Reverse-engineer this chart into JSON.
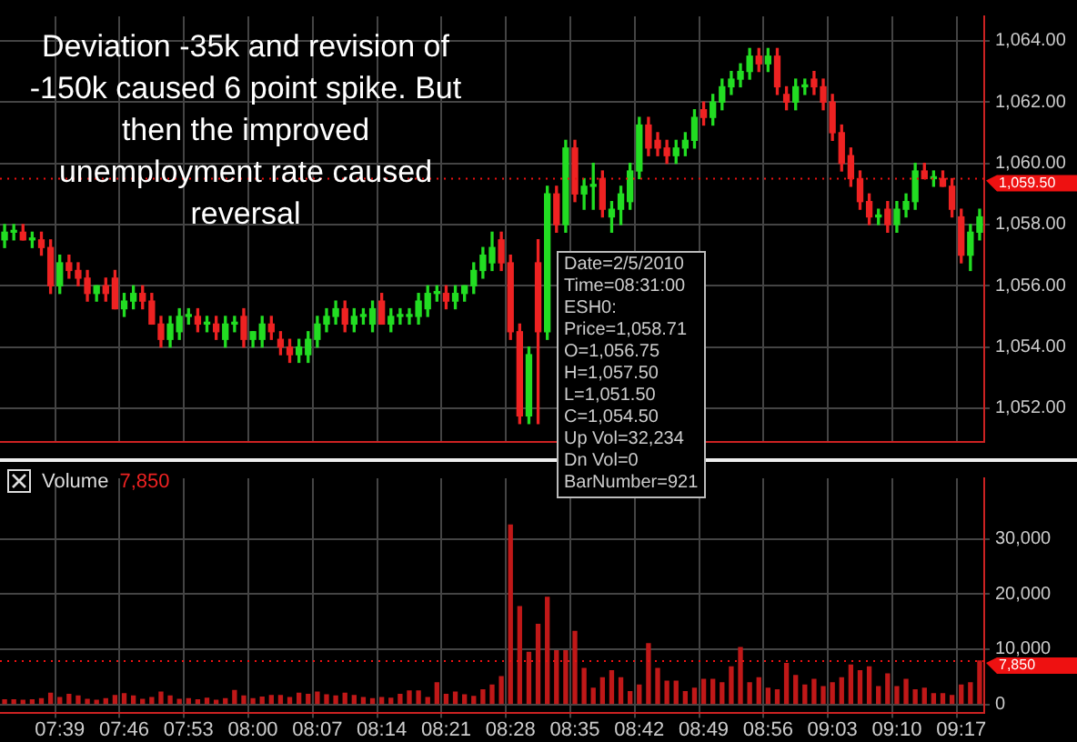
{
  "chart_data": [
    {
      "type": "candlestick",
      "categories": [
        null,
        null,
        null,
        null,
        null,
        null,
        null,
        null,
        null,
        null,
        null,
        null,
        null,
        null,
        null,
        null,
        null,
        null,
        null,
        null,
        null,
        null,
        null,
        null,
        null,
        null,
        null,
        null,
        null,
        null,
        null,
        null,
        null,
        null,
        null,
        null,
        null,
        null,
        null,
        null,
        null,
        null,
        null,
        null,
        null,
        null,
        null,
        null,
        null,
        null,
        null,
        null,
        null,
        null,
        null,
        null,
        null,
        null,
        null,
        null,
        null,
        null,
        null,
        null,
        null,
        null,
        null,
        null,
        null,
        null,
        null,
        null,
        null,
        null,
        null,
        null,
        null,
        null,
        null,
        null,
        null,
        null,
        null,
        null,
        null,
        null,
        null,
        null,
        null,
        null,
        null,
        null,
        null,
        null,
        null,
        null,
        null,
        null,
        null,
        null,
        null,
        null,
        null,
        null,
        null,
        null,
        null
      ],
      "ohlc": [
        [
          1057.5,
          1058,
          1057.25,
          1057.75
        ],
        [
          1057.75,
          1058,
          1057.5,
          1057.75
        ],
        [
          1057.75,
          1058,
          1057.5,
          1057.5
        ],
        [
          1057.5,
          1057.75,
          1057.25,
          1057.5
        ],
        [
          1057.5,
          1057.75,
          1057,
          1057.25
        ],
        [
          1057.25,
          1057.5,
          1055.75,
          1056
        ],
        [
          1056,
          1057,
          1055.75,
          1056.75
        ],
        [
          1056.75,
          1057,
          1056.25,
          1056.5
        ],
        [
          1056.5,
          1056.75,
          1056,
          1056.25
        ],
        [
          1056.25,
          1056.5,
          1055.5,
          1055.75
        ],
        [
          1055.75,
          1056,
          1055.5,
          1056
        ],
        [
          1056,
          1056.25,
          1055.5,
          1055.75
        ],
        [
          1056.25,
          1056.5,
          1055.25,
          1055.25
        ],
        [
          1055.25,
          1055.75,
          1055,
          1055.5
        ],
        [
          1055.5,
          1056,
          1055.25,
          1055.75
        ],
        [
          1055.75,
          1056,
          1055.25,
          1055.5
        ],
        [
          1055.5,
          1055.75,
          1054.75,
          1054.75
        ],
        [
          1054.75,
          1055,
          1054,
          1054.25
        ],
        [
          1054.25,
          1055,
          1054,
          1054.75
        ],
        [
          1054.5,
          1055.25,
          1054.25,
          1055
        ],
        [
          1055,
          1055.25,
          1054.75,
          1055
        ],
        [
          1055,
          1055.25,
          1054.5,
          1054.75
        ],
        [
          1054.75,
          1055,
          1054.5,
          1054.75
        ],
        [
          1054.75,
          1055,
          1054.25,
          1054.5
        ],
        [
          1054.25,
          1055,
          1054,
          1054.75
        ],
        [
          1054.75,
          1055,
          1054.5,
          1054.75
        ],
        [
          1055,
          1055.25,
          1054,
          1054.25
        ],
        [
          1054.25,
          1054.5,
          1054,
          1054.5
        ],
        [
          1054.25,
          1055,
          1054,
          1054.75
        ],
        [
          1054.75,
          1055,
          1054.25,
          1054.5
        ],
        [
          1054.25,
          1054.5,
          1053.75,
          1054
        ],
        [
          1054,
          1054.25,
          1053.5,
          1053.75
        ],
        [
          1053.75,
          1054.25,
          1053.5,
          1054
        ],
        [
          1053.75,
          1054.5,
          1053.5,
          1054.25
        ],
        [
          1054.25,
          1055,
          1054,
          1054.75
        ],
        [
          1054.75,
          1055.25,
          1054.5,
          1055
        ],
        [
          1055,
          1055.5,
          1054.75,
          1055.25
        ],
        [
          1055.25,
          1055.5,
          1054.5,
          1054.75
        ],
        [
          1054.75,
          1055.25,
          1054.5,
          1055
        ],
        [
          1055,
          1055.25,
          1054.75,
          1055
        ],
        [
          1054.75,
          1055.5,
          1054.5,
          1055.25
        ],
        [
          1055.5,
          1055.75,
          1054.75,
          1054.75
        ],
        [
          1054.75,
          1055.25,
          1054.5,
          1055
        ],
        [
          1055,
          1055.25,
          1054.75,
          1055
        ],
        [
          1055,
          1055.25,
          1054.75,
          1055
        ],
        [
          1055,
          1055.75,
          1054.75,
          1055.5
        ],
        [
          1055.25,
          1056,
          1055,
          1055.75
        ],
        [
          1055.75,
          1056,
          1055.5,
          1055.75
        ],
        [
          1055.75,
          1056,
          1055.25,
          1055.5
        ],
        [
          1055.5,
          1056,
          1055.25,
          1055.75
        ],
        [
          1055.75,
          1056,
          1055.5,
          1056
        ],
        [
          1056,
          1056.75,
          1055.75,
          1056.5
        ],
        [
          1056.5,
          1057.25,
          1056.25,
          1057
        ],
        [
          1056.75,
          1057.75,
          1056.5,
          1057.25
        ],
        [
          1057.5,
          1057.75,
          1056.5,
          1056.75
        ],
        [
          1056.75,
          1057,
          1054.25,
          1054.5
        ],
        [
          1054.5,
          1054.75,
          1051.5,
          1051.75
        ],
        [
          1051.75,
          1054,
          1051.5,
          1053.75
        ],
        [
          1056.75,
          1057.5,
          1051.5,
          1054.5
        ],
        [
          1054.5,
          1059.25,
          1054.25,
          1059
        ],
        [
          1059,
          1059.25,
          1057.75,
          1058
        ],
        [
          1058,
          1060.75,
          1057.75,
          1060.5
        ],
        [
          1060.5,
          1060.75,
          1058.75,
          1059
        ],
        [
          1059,
          1059.5,
          1058.5,
          1059.25
        ],
        [
          1059.25,
          1060,
          1058.5,
          1059.25
        ],
        [
          1059.5,
          1059.75,
          1058.25,
          1058.5
        ],
        [
          1058.25,
          1058.75,
          1057.75,
          1058.5
        ],
        [
          1058.5,
          1059.25,
          1058,
          1059
        ],
        [
          1058.75,
          1060,
          1058.5,
          1059.75
        ],
        [
          1059.75,
          1061.5,
          1059.5,
          1061.25
        ],
        [
          1061.25,
          1061.5,
          1060.25,
          1060.5
        ],
        [
          1060.75,
          1061,
          1060.25,
          1060.5
        ],
        [
          1060.5,
          1060.75,
          1060,
          1060.25
        ],
        [
          1060.25,
          1060.75,
          1060,
          1060.5
        ],
        [
          1060.5,
          1061,
          1060.25,
          1060.75
        ],
        [
          1060.75,
          1061.75,
          1060.5,
          1061.5
        ],
        [
          1061.75,
          1062,
          1061.25,
          1061.5
        ],
        [
          1061.5,
          1062.25,
          1061.25,
          1062
        ],
        [
          1062,
          1062.75,
          1061.75,
          1062.5
        ],
        [
          1062.5,
          1063,
          1062.25,
          1062.75
        ],
        [
          1062.75,
          1063.25,
          1062.5,
          1063
        ],
        [
          1063,
          1063.75,
          1062.75,
          1063.5
        ],
        [
          1063.5,
          1063.75,
          1063,
          1063.25
        ],
        [
          1063.25,
          1063.75,
          1063,
          1063.5
        ],
        [
          1063.5,
          1063.75,
          1062.25,
          1062.5
        ],
        [
          1062.25,
          1062.5,
          1061.75,
          1062
        ],
        [
          1062,
          1062.75,
          1061.75,
          1062.5
        ],
        [
          1062.5,
          1062.75,
          1062.25,
          1062.5
        ],
        [
          1062.75,
          1063,
          1062.25,
          1062.5
        ],
        [
          1062.5,
          1062.75,
          1061.75,
          1062
        ],
        [
          1062,
          1062.25,
          1060.75,
          1061
        ],
        [
          1061,
          1061.25,
          1059.75,
          1060
        ],
        [
          1060.25,
          1060.5,
          1059.25,
          1059.5
        ],
        [
          1059.5,
          1059.75,
          1058.5,
          1058.75
        ],
        [
          1058.75,
          1059,
          1058,
          1058.25
        ],
        [
          1058.25,
          1058.5,
          1058,
          1058.25
        ],
        [
          1058.5,
          1058.75,
          1057.75,
          1058
        ],
        [
          1058,
          1058.75,
          1057.75,
          1058.5
        ],
        [
          1058.5,
          1059,
          1058.25,
          1058.75
        ],
        [
          1058.75,
          1060,
          1058.5,
          1059.75
        ],
        [
          1059.75,
          1060,
          1059.5,
          1059.5
        ],
        [
          1059.5,
          1059.75,
          1059.25,
          1059.5
        ],
        [
          1059.5,
          1059.75,
          1059.25,
          1059.25
        ],
        [
          1059.25,
          1059.5,
          1058.25,
          1058.5
        ],
        [
          1058.25,
          1058.5,
          1056.75,
          1057
        ],
        [
          1057,
          1058,
          1056.5,
          1057.75
        ],
        [
          1057.75,
          1058.5,
          1057.5,
          1058.25
        ]
      ],
      "colors": [
        "#22dd22",
        "#22dd22",
        "#ee2222",
        "#22dd22",
        "#ee2222",
        "#ee2222",
        "#22dd22",
        "#ee2222",
        "#ee2222",
        "#ee2222",
        "#22dd22",
        "#ee2222",
        "#ee2222",
        "#22dd22",
        "#22dd22",
        "#ee2222",
        "#ee2222",
        "#ee2222",
        "#22dd22",
        "#22dd22",
        "#22dd22",
        "#ee2222",
        "#22dd22",
        "#ee2222",
        "#22dd22",
        "#22dd22",
        "#ee2222",
        "#22dd22",
        "#22dd22",
        "#ee2222",
        "#ee2222",
        "#ee2222",
        "#22dd22",
        "#22dd22",
        "#22dd22",
        "#22dd22",
        "#22dd22",
        "#ee2222",
        "#22dd22",
        "#22dd22",
        "#22dd22",
        "#ee2222",
        "#22dd22",
        "#22dd22",
        "#22dd22",
        "#22dd22",
        "#22dd22",
        "#22dd22",
        "#ee2222",
        "#22dd22",
        "#22dd22",
        "#22dd22",
        "#22dd22",
        "#22dd22",
        "#ee2222",
        "#ee2222",
        "#ee2222",
        "#22dd22",
        "#ee2222",
        "#22dd22",
        "#ee2222",
        "#22dd22",
        "#ee2222",
        "#22dd22",
        "#22dd22",
        "#ee2222",
        "#22dd22",
        "#22dd22",
        "#22dd22",
        "#22dd22",
        "#ee2222",
        "#ee2222",
        "#ee2222",
        "#22dd22",
        "#22dd22",
        "#22dd22",
        "#ee2222",
        "#22dd22",
        "#22dd22",
        "#22dd22",
        "#22dd22",
        "#22dd22",
        "#ee2222",
        "#22dd22",
        "#ee2222",
        "#ee2222",
        "#22dd22",
        "#22dd22",
        "#ee2222",
        "#ee2222",
        "#ee2222",
        "#ee2222",
        "#ee2222",
        "#ee2222",
        "#ee2222",
        "#22dd22",
        "#ee2222",
        "#22dd22",
        "#22dd22",
        "#22dd22",
        "#ee2222",
        "#22dd22",
        "#ee2222",
        "#ee2222",
        "#ee2222",
        "#22dd22",
        "#22dd22"
      ],
      "ylim": [
        1050.9,
        1064.8
      ],
      "yticks": [
        {
          "value": 1052,
          "label": "1,052.00"
        },
        {
          "value": 1054,
          "label": "1,054.00"
        },
        {
          "value": 1056,
          "label": "1,056.00"
        },
        {
          "value": 1058,
          "label": "1,058.00"
        },
        {
          "value": 1060,
          "label": "1,060.00"
        },
        {
          "value": 1062,
          "label": "1,062.00"
        },
        {
          "value": 1064,
          "label": "1,064.00"
        }
      ],
      "grid": true,
      "legend": false,
      "tick_labels": "y",
      "ref_lines": [
        {
          "axis": "y",
          "value": 1059.5,
          "label": "1,059.50",
          "color": "#ee1111",
          "line_style": "dotted"
        }
      ],
      "annotations": [
        "Deviation -35k and revision of -150k caused 6 point spike. But then the improved unemployment rate caused reversal",
        "Date=2/5/2010",
        "Time=08:31:00",
        "ESH0:",
        "Price=1,058.71",
        "O=1,056.75",
        "H=1,057.50",
        "L=1,051.50",
        "C=1,054.50",
        "Up Vol=32,234",
        "Dn Vol=0",
        "BarNumber=921"
      ]
    },
    {
      "type": "bar",
      "title": "Volume",
      "categories": [
        null,
        null,
        null,
        null,
        null,
        null,
        "07:39",
        null,
        null,
        null,
        null,
        null,
        null,
        "07:46",
        null,
        null,
        null,
        null,
        null,
        null,
        "07:53",
        null,
        null,
        null,
        null,
        null,
        null,
        "08:00",
        null,
        null,
        null,
        null,
        null,
        null,
        "08:07",
        null,
        null,
        null,
        null,
        null,
        null,
        "08:14",
        null,
        null,
        null,
        null,
        null,
        null,
        "08:21",
        null,
        null,
        null,
        null,
        null,
        null,
        "08:28",
        null,
        null,
        null,
        null,
        null,
        null,
        "08:35",
        null,
        null,
        null,
        null,
        null,
        null,
        "08:42",
        null,
        null,
        null,
        null,
        null,
        null,
        "08:49",
        null,
        null,
        null,
        null,
        null,
        null,
        "08:56",
        null,
        null,
        null,
        null,
        null,
        null,
        "09:03",
        null,
        null,
        null,
        null,
        null,
        null,
        "09:10",
        null,
        null,
        null,
        null,
        null,
        null,
        "09:17",
        null,
        null
      ],
      "values": [
        800,
        800,
        700,
        800,
        1000,
        2000,
        1200,
        1800,
        1500,
        900,
        700,
        1000,
        1600,
        1900,
        1500,
        900,
        1200,
        2200,
        1500,
        900,
        1000,
        800,
        1100,
        700,
        1000,
        2500,
        1500,
        1000,
        1300,
        1600,
        1600,
        1200,
        2000,
        1800,
        2200,
        1700,
        1500,
        2000,
        1600,
        1200,
        1000,
        1200,
        1100,
        1800,
        2400,
        2400,
        1200,
        3900,
        1800,
        2200,
        1700,
        1400,
        2600,
        3500,
        5000,
        32500,
        17700,
        9400,
        14500,
        19400,
        9700,
        9700,
        13200,
        6500,
        2900,
        4800,
        6100,
        4800,
        2300,
        3500,
        11000,
        6500,
        4200,
        4200,
        2300,
        2900,
        4500,
        4500,
        3900,
        6800,
        10300,
        3900,
        4800,
        2900,
        2600,
        7400,
        5200,
        3500,
        4500,
        3200,
        3900,
        4800,
        7100,
        6100,
        6800,
        3200,
        5500,
        3200,
        4500,
        2600,
        2900,
        1900,
        1900,
        1600,
        3500,
        3900,
        7850
      ],
      "color": "#c01818",
      "ylim": [
        -1500,
        41000
      ],
      "yticks": [
        0,
        {
          "value": 10000,
          "label": "10,000"
        },
        {
          "value": 20000,
          "label": "20,000"
        },
        {
          "value": 30000,
          "label": "30,000"
        }
      ],
      "grid": true,
      "legend": false,
      "ref_lines": [
        {
          "axis": "y",
          "value": 7850,
          "label": "7,850",
          "color": "#ee1111",
          "line_style": "dotted"
        }
      ],
      "annotations": [
        "7,850"
      ]
    }
  ]
}
